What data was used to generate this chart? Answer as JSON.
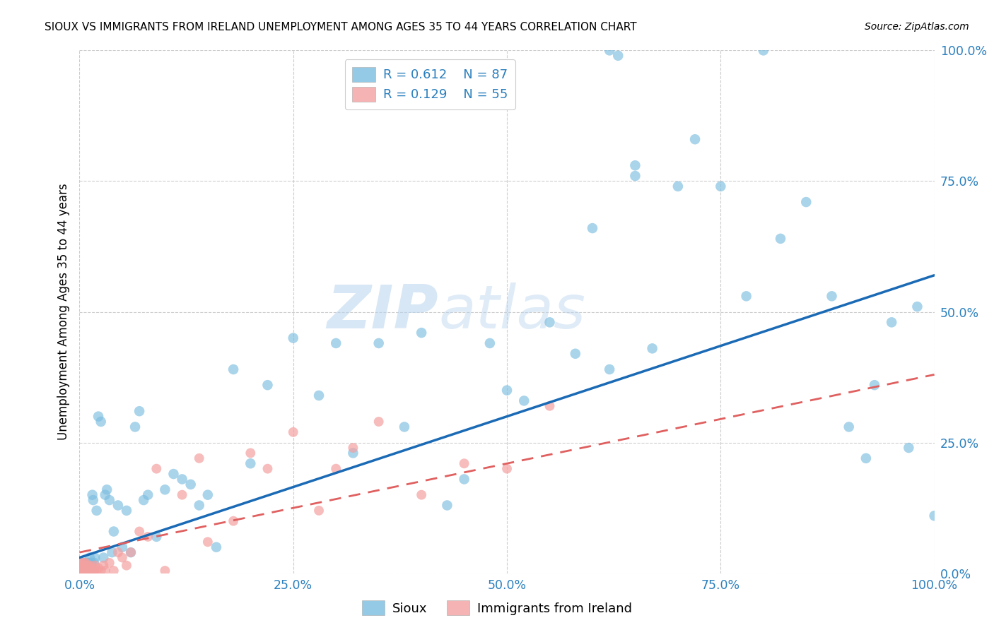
{
  "title": "SIOUX VS IMMIGRANTS FROM IRELAND UNEMPLOYMENT AMONG AGES 35 TO 44 YEARS CORRELATION CHART",
  "source": "Source: ZipAtlas.com",
  "ylabel_text": "Unemployment Among Ages 35 to 44 years",
  "x_min": 0.0,
  "x_max": 1.0,
  "y_min": 0.0,
  "y_max": 1.0,
  "sioux_color": "#7bbde0",
  "ireland_color": "#f4a0a0",
  "sioux_R": 0.612,
  "sioux_N": 87,
  "ireland_R": 0.129,
  "ireland_N": 55,
  "legend_bottom_sioux": "Sioux",
  "legend_bottom_ireland": "Immigrants from Ireland",
  "watermark_zip": "ZIP",
  "watermark_atlas": "atlas",
  "background_color": "#ffffff",
  "grid_color": "#c8c8c8",
  "sioux_x": [
    0.002,
    0.003,
    0.004,
    0.005,
    0.005,
    0.006,
    0.006,
    0.007,
    0.007,
    0.008,
    0.008,
    0.009,
    0.009,
    0.01,
    0.01,
    0.011,
    0.012,
    0.013,
    0.014,
    0.015,
    0.016,
    0.017,
    0.018,
    0.02,
    0.022,
    0.025,
    0.028,
    0.03,
    0.032,
    0.035,
    0.038,
    0.04,
    0.045,
    0.05,
    0.055,
    0.06,
    0.065,
    0.07,
    0.075,
    0.08,
    0.09,
    0.1,
    0.11,
    0.12,
    0.13,
    0.14,
    0.15,
    0.16,
    0.18,
    0.2,
    0.22,
    0.25,
    0.28,
    0.3,
    0.32,
    0.35,
    0.38,
    0.4,
    0.43,
    0.45,
    0.48,
    0.5,
    0.52,
    0.55,
    0.58,
    0.6,
    0.62,
    0.63,
    0.65,
    0.67,
    0.7,
    0.72,
    0.75,
    0.78,
    0.8,
    0.82,
    0.85,
    0.88,
    0.9,
    0.92,
    0.93,
    0.95,
    0.97,
    0.98,
    1.0,
    0.62,
    0.65
  ],
  "sioux_y": [
    0.005,
    0.01,
    0.005,
    0.01,
    0.02,
    0.005,
    0.015,
    0.005,
    0.02,
    0.005,
    0.015,
    0.01,
    0.02,
    0.005,
    0.015,
    0.02,
    0.03,
    0.01,
    0.02,
    0.15,
    0.14,
    0.02,
    0.03,
    0.12,
    0.3,
    0.29,
    0.03,
    0.15,
    0.16,
    0.14,
    0.04,
    0.08,
    0.13,
    0.05,
    0.12,
    0.04,
    0.28,
    0.31,
    0.14,
    0.15,
    0.07,
    0.16,
    0.19,
    0.18,
    0.17,
    0.13,
    0.15,
    0.05,
    0.39,
    0.21,
    0.36,
    0.45,
    0.34,
    0.44,
    0.23,
    0.44,
    0.28,
    0.46,
    0.13,
    0.18,
    0.44,
    0.35,
    0.33,
    0.48,
    0.42,
    0.66,
    1.0,
    0.99,
    0.78,
    0.43,
    0.74,
    0.83,
    0.74,
    0.53,
    1.0,
    0.64,
    0.71,
    0.53,
    0.28,
    0.22,
    0.36,
    0.48,
    0.24,
    0.51,
    0.11,
    0.39,
    0.76
  ],
  "ireland_x": [
    0.001,
    0.002,
    0.003,
    0.003,
    0.004,
    0.004,
    0.005,
    0.005,
    0.006,
    0.006,
    0.007,
    0.007,
    0.008,
    0.008,
    0.009,
    0.01,
    0.01,
    0.011,
    0.012,
    0.013,
    0.014,
    0.015,
    0.016,
    0.017,
    0.018,
    0.02,
    0.022,
    0.025,
    0.028,
    0.03,
    0.035,
    0.04,
    0.045,
    0.05,
    0.055,
    0.06,
    0.07,
    0.08,
    0.09,
    0.1,
    0.12,
    0.14,
    0.15,
    0.18,
    0.2,
    0.22,
    0.25,
    0.28,
    0.3,
    0.32,
    0.35,
    0.4,
    0.45,
    0.5,
    0.55
  ],
  "ireland_y": [
    0.005,
    0.01,
    0.005,
    0.02,
    0.005,
    0.015,
    0.005,
    0.02,
    0.005,
    0.015,
    0.005,
    0.02,
    0.005,
    0.015,
    0.005,
    0.005,
    0.015,
    0.005,
    0.015,
    0.005,
    0.01,
    0.005,
    0.01,
    0.005,
    0.015,
    0.005,
    0.01,
    0.005,
    0.015,
    0.005,
    0.02,
    0.005,
    0.04,
    0.03,
    0.015,
    0.04,
    0.08,
    0.07,
    0.2,
    0.005,
    0.15,
    0.22,
    0.06,
    0.1,
    0.23,
    0.2,
    0.27,
    0.12,
    0.2,
    0.24,
    0.29,
    0.15,
    0.21,
    0.2,
    0.32
  ],
  "sioux_line_x": [
    0.0,
    1.0
  ],
  "sioux_line_y": [
    0.03,
    0.57
  ],
  "ireland_line_x": [
    0.0,
    1.0
  ],
  "ireland_line_y": [
    0.04,
    0.38
  ]
}
